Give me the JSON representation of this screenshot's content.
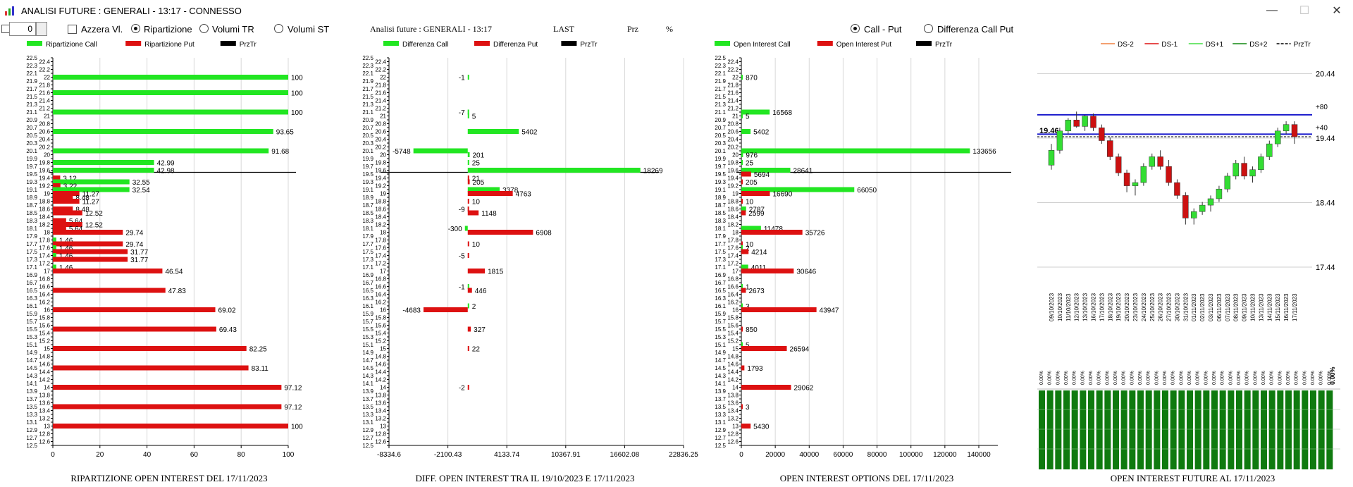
{
  "window": {
    "title": "ANALISI FUTURE : GENERALI - 13:17 - CONNESSO",
    "minimize": "—",
    "maximize": "☐",
    "close": "✕"
  },
  "toolbar": {
    "spin_value": "0",
    "azzera_label": "Azzera Vl.",
    "radio_ripartizione": "Ripartizione",
    "radio_volumi_tr": "Volumi TR",
    "radio_volumi_st": "Volumi ST",
    "analisi_title": "Analisi future : GENERALI - 13:17",
    "last_label": "LAST",
    "prz_label": "Prz",
    "pct_label": "%",
    "radio_call_put": "Call - Put",
    "radio_diff_call_put": "Differenza Call Put",
    "selected_mode": "Ripartizione",
    "selected_view": "Call - Put"
  },
  "colors": {
    "call": "#22e622",
    "put": "#dd1111",
    "prztr": "#000000",
    "future_bar": "#0f7a0f",
    "level_line": "#1a1acc"
  },
  "chart_data": [
    {
      "type": "bar",
      "caption": "RIPARTIZIONE OPEN INTEREST DEL 17/11/2023",
      "legend": [
        "Ripartizione Call",
        "Ripartizione Put",
        "PrzTr"
      ],
      "xticks": [
        "0",
        "20",
        "40",
        "60",
        "80",
        "100"
      ],
      "xlim": [
        0,
        100
      ],
      "prztr_strike": 19.6,
      "bars": [
        {
          "strike": 22,
          "series": "call",
          "value": 100,
          "label": "100"
        },
        {
          "strike": 21.6,
          "series": "call",
          "value": 100,
          "label": "100"
        },
        {
          "strike": 21.1,
          "series": "call",
          "value": 100,
          "label": "100"
        },
        {
          "strike": 20.6,
          "series": "call",
          "value": 93.65,
          "label": "93.65"
        },
        {
          "strike": 20.1,
          "series": "call",
          "value": 91.68,
          "label": "91.68"
        },
        {
          "strike": 19.8,
          "series": "call",
          "value": 42.99,
          "label": "42.99"
        },
        {
          "strike": 19.6,
          "series": "call",
          "value": 42.98,
          "label": "42.98"
        },
        {
          "strike": 19.4,
          "series": "put",
          "value": 3.12,
          "label": "3.12"
        },
        {
          "strike": 19.3,
          "series": "call",
          "value": 32.55,
          "label": "32.55"
        },
        {
          "strike": 19.2,
          "series": "put",
          "value": 3.22,
          "label": "3.22"
        },
        {
          "strike": 19.1,
          "series": "call",
          "value": 32.54,
          "label": "32.54"
        },
        {
          "strike": 19.0,
          "series": "put",
          "value": 11.27,
          "label": "11.27"
        },
        {
          "strike": 18.9,
          "series": "put",
          "value": 8.48,
          "label": "8.48"
        },
        {
          "strike": 18.8,
          "series": "put",
          "value": 11.27,
          "label": "11.27"
        },
        {
          "strike": 18.6,
          "series": "put",
          "value": 8.48,
          "label": "8.48"
        },
        {
          "strike": 18.5,
          "series": "put",
          "value": 12.52,
          "label": "12.52"
        },
        {
          "strike": 18.3,
          "series": "put",
          "value": 5.64,
          "label": "5.64"
        },
        {
          "strike": 18.2,
          "series": "put",
          "value": 12.52,
          "label": "12.52"
        },
        {
          "strike": 18.1,
          "series": "put",
          "value": 5.64,
          "label": "5.64"
        },
        {
          "strike": 18.0,
          "series": "put",
          "value": 29.74,
          "label": "29.74"
        },
        {
          "strike": 17.8,
          "series": "call",
          "value": 1.46,
          "label": "1.46"
        },
        {
          "strike": 17.7,
          "series": "put",
          "value": 29.74,
          "label": "29.74"
        },
        {
          "strike": 17.6,
          "series": "call",
          "value": 1.46,
          "label": "1.46"
        },
        {
          "strike": 17.5,
          "series": "put",
          "value": 31.77,
          "label": "31.77"
        },
        {
          "strike": 17.4,
          "series": "call",
          "value": 1.46,
          "label": "1.46"
        },
        {
          "strike": 17.3,
          "series": "put",
          "value": 31.77,
          "label": "31.77"
        },
        {
          "strike": 17.1,
          "series": "call",
          "value": 1.46,
          "label": "1.46"
        },
        {
          "strike": 17.0,
          "series": "put",
          "value": 46.54,
          "label": "46.54"
        },
        {
          "strike": 16.5,
          "series": "put",
          "value": 47.83,
          "label": "47.83"
        },
        {
          "strike": 16.0,
          "series": "put",
          "value": 69.02,
          "label": "69.02"
        },
        {
          "strike": 15.5,
          "series": "put",
          "value": 69.43,
          "label": "69.43"
        },
        {
          "strike": 15.0,
          "series": "put",
          "value": 82.25,
          "label": "82.25"
        },
        {
          "strike": 14.5,
          "series": "put",
          "value": 83.11,
          "label": "83.11"
        },
        {
          "strike": 14.0,
          "series": "put",
          "value": 97.12,
          "label": "97.12"
        },
        {
          "strike": 13.5,
          "series": "put",
          "value": 97.12,
          "label": "97.12"
        },
        {
          "strike": 13.0,
          "series": "put",
          "value": 100,
          "label": "100"
        }
      ]
    },
    {
      "type": "bar",
      "caption": "DIFF. OPEN INTEREST TRA IL 19/10/2023 E 17/11/2023",
      "legend": [
        "Differenza Call",
        "Differenza Put",
        "PrzTr"
      ],
      "xticks": [
        "-8334.6",
        "-2100.43",
        "4133.74",
        "10367.91",
        "16602.08",
        "22836.25"
      ],
      "xlim": [
        -8334.6,
        22836.25
      ],
      "prztr_strike": 19.6,
      "bars": [
        {
          "strike": 22,
          "series": "call",
          "value": -1,
          "label": "-1"
        },
        {
          "strike": 21.1,
          "series": "call",
          "value": -7,
          "label": "-7"
        },
        {
          "strike": 21.0,
          "series": "call",
          "value": 5,
          "label": "5"
        },
        {
          "strike": 20.6,
          "series": "call",
          "value": 5402,
          "label": "5402"
        },
        {
          "strike": 20.1,
          "series": "call",
          "value": -5748,
          "label": "-5748"
        },
        {
          "strike": 20.0,
          "series": "call",
          "value": 201,
          "label": "201"
        },
        {
          "strike": 19.8,
          "series": "call",
          "value": 25,
          "label": "25"
        },
        {
          "strike": 19.6,
          "series": "call",
          "value": 18269,
          "label": "18269"
        },
        {
          "strike": 19.4,
          "series": "put",
          "value": 21,
          "label": "21"
        },
        {
          "strike": 19.3,
          "series": "put",
          "value": 205,
          "label": "205"
        },
        {
          "strike": 19.1,
          "series": "call",
          "value": 3378,
          "label": "3378"
        },
        {
          "strike": 19.0,
          "series": "put",
          "value": 4763,
          "label": "4763"
        },
        {
          "strike": 18.8,
          "series": "put",
          "value": 10,
          "label": "10"
        },
        {
          "strike": 18.6,
          "series": "put",
          "value": -9,
          "label": "-9"
        },
        {
          "strike": 18.5,
          "series": "put",
          "value": 1148,
          "label": "1148"
        },
        {
          "strike": 18.1,
          "series": "call",
          "value": -300,
          "label": "-300"
        },
        {
          "strike": 18.0,
          "series": "put",
          "value": 6908,
          "label": "6908"
        },
        {
          "strike": 17.7,
          "series": "put",
          "value": 10,
          "label": "10"
        },
        {
          "strike": 17.4,
          "series": "put",
          "value": -5,
          "label": "-5"
        },
        {
          "strike": 17.0,
          "series": "put",
          "value": 1815,
          "label": "1815"
        },
        {
          "strike": 16.6,
          "series": "call",
          "value": -1,
          "label": "-1"
        },
        {
          "strike": 16.5,
          "series": "put",
          "value": 446,
          "label": "446"
        },
        {
          "strike": 16.1,
          "series": "call",
          "value": 2,
          "label": "2"
        },
        {
          "strike": 16.0,
          "series": "put",
          "value": -4683,
          "label": "-4683"
        },
        {
          "strike": 15.5,
          "series": "put",
          "value": 327,
          "label": "327"
        },
        {
          "strike": 15.0,
          "series": "put",
          "value": 22,
          "label": "22"
        },
        {
          "strike": 14.0,
          "series": "put",
          "value": -2,
          "label": "-2"
        }
      ]
    },
    {
      "type": "bar",
      "caption": "OPEN INTEREST OPTIONS DEL 17/11/2023",
      "legend": [
        "Open Interest Call",
        "Open Interest Put",
        "PrzTr"
      ],
      "xticks": [
        "0",
        "20000",
        "40000",
        "60000",
        "80000",
        "100000",
        "120000",
        "140000"
      ],
      "xlim": [
        0,
        150000
      ],
      "prztr_strike": 19.6,
      "bars": [
        {
          "strike": 22,
          "series": "call",
          "value": 870,
          "label": "870"
        },
        {
          "strike": 21.1,
          "series": "call",
          "value": 16568,
          "label": "16568"
        },
        {
          "strike": 21.0,
          "series": "call",
          "value": 5,
          "label": "5"
        },
        {
          "strike": 20.6,
          "series": "call",
          "value": 5402,
          "label": "5402"
        },
        {
          "strike": 20.1,
          "series": "call",
          "value": 133656,
          "label": "133656"
        },
        {
          "strike": 20.0,
          "series": "call",
          "value": 976,
          "label": "976"
        },
        {
          "strike": 19.8,
          "series": "call",
          "value": 25,
          "label": "25"
        },
        {
          "strike": 19.6,
          "series": "call",
          "value": 28641,
          "label": "28641"
        },
        {
          "strike": 19.5,
          "series": "put",
          "value": 5694,
          "label": "5694"
        },
        {
          "strike": 19.3,
          "series": "put",
          "value": 205,
          "label": "205"
        },
        {
          "strike": 19.1,
          "series": "call",
          "value": 66050,
          "label": "66050"
        },
        {
          "strike": 19.0,
          "series": "put",
          "value": 16690,
          "label": "16690"
        },
        {
          "strike": 18.8,
          "series": "put",
          "value": 10,
          "label": "10"
        },
        {
          "strike": 18.6,
          "series": "call",
          "value": 2787,
          "label": "2787"
        },
        {
          "strike": 18.5,
          "series": "put",
          "value": 2599,
          "label": "2599"
        },
        {
          "strike": 18.1,
          "series": "call",
          "value": 11478,
          "label": "11478"
        },
        {
          "strike": 18.0,
          "series": "put",
          "value": 35726,
          "label": "35726"
        },
        {
          "strike": 17.7,
          "series": "put",
          "value": 10,
          "label": "10"
        },
        {
          "strike": 17.6,
          "series": "call",
          "value": 2,
          "label": "2"
        },
        {
          "strike": 17.5,
          "series": "put",
          "value": 4214,
          "label": "4214"
        },
        {
          "strike": 17.1,
          "series": "call",
          "value": 4011,
          "label": "4011"
        },
        {
          "strike": 17.0,
          "series": "put",
          "value": 30646,
          "label": "30646"
        },
        {
          "strike": 16.6,
          "series": "call",
          "value": 1,
          "label": "1"
        },
        {
          "strike": 16.5,
          "series": "put",
          "value": 2673,
          "label": "2673"
        },
        {
          "strike": 16.1,
          "series": "call",
          "value": 3,
          "label": "3"
        },
        {
          "strike": 16.0,
          "series": "put",
          "value": 43947,
          "label": "43947"
        },
        {
          "strike": 15.5,
          "series": "put",
          "value": 850,
          "label": "850"
        },
        {
          "strike": 15.1,
          "series": "call",
          "value": 5,
          "label": "5"
        },
        {
          "strike": 15.0,
          "series": "put",
          "value": 26594,
          "label": "26594"
        },
        {
          "strike": 14.5,
          "series": "put",
          "value": 1793,
          "label": "1793"
        },
        {
          "strike": 14.0,
          "series": "put",
          "value": 29062,
          "label": "29062"
        },
        {
          "strike": 13.5,
          "series": "put",
          "value": 3,
          "label": "3"
        },
        {
          "strike": 13.0,
          "series": "put",
          "value": 5430,
          "label": "5430"
        }
      ]
    },
    {
      "type": "candlestick",
      "caption": "OPEN INTEREST FUTURE AL 17/11/2023",
      "legend": [
        "DS-2",
        "DS-1",
        "DS+1",
        "DS+2",
        "PrzTr"
      ],
      "legend_colors": [
        "#f08040",
        "#dd1111",
        "#44dd44",
        "#118811",
        "#000000"
      ],
      "yticks": [
        "20.44",
        "19.44",
        "18.44",
        "17.44"
      ],
      "ylim": [
        17.44,
        20.64
      ],
      "current_price_label": "19.46",
      "current_price": 19.46,
      "line_labels": [
        "+80",
        "+40"
      ],
      "level_plus80": 19.8,
      "level_plus40": 19.5,
      "dates": [
        "09/10/2023",
        "10/10/2023",
        "11/10/2023",
        "12/10/2023",
        "13/10/2023",
        "16/10/2023",
        "17/10/2023",
        "18/10/2023",
        "19/10/2023",
        "20/10/2023",
        "23/10/2023",
        "24/10/2023",
        "25/10/2023",
        "26/10/2023",
        "27/10/2023",
        "30/10/2023",
        "31/10/2023",
        "01/11/2023",
        "02/11/2023",
        "03/11/2023",
        "06/11/2023",
        "07/11/2023",
        "08/11/2023",
        "09/11/2023",
        "10/11/2023",
        "13/11/2023",
        "14/11/2023",
        "15/11/2023",
        "16/11/2023",
        "17/11/2023"
      ],
      "ohlc": [
        [
          19.02,
          19.35,
          18.95,
          19.25
        ],
        [
          19.25,
          19.6,
          19.2,
          19.55
        ],
        [
          19.55,
          19.75,
          19.5,
          19.72
        ],
        [
          19.72,
          19.85,
          19.6,
          19.62
        ],
        [
          19.62,
          19.8,
          19.55,
          19.78
        ],
        [
          19.78,
          19.82,
          19.55,
          19.6
        ],
        [
          19.6,
          19.65,
          19.35,
          19.4
        ],
        [
          19.4,
          19.45,
          19.1,
          19.15
        ],
        [
          19.15,
          19.2,
          18.85,
          18.9
        ],
        [
          18.9,
          18.95,
          18.6,
          18.7
        ],
        [
          18.7,
          18.8,
          18.55,
          18.75
        ],
        [
          18.75,
          19.05,
          18.7,
          19.0
        ],
        [
          19.0,
          19.2,
          18.95,
          19.15
        ],
        [
          19.15,
          19.25,
          18.95,
          19.0
        ],
        [
          19.0,
          19.1,
          18.7,
          18.75
        ],
        [
          18.75,
          18.8,
          18.5,
          18.55
        ],
        [
          18.55,
          18.6,
          18.1,
          18.2
        ],
        [
          18.2,
          18.35,
          18.1,
          18.3
        ],
        [
          18.3,
          18.45,
          18.25,
          18.4
        ],
        [
          18.4,
          18.55,
          18.3,
          18.5
        ],
        [
          18.5,
          18.7,
          18.45,
          18.65
        ],
        [
          18.65,
          18.9,
          18.6,
          18.85
        ],
        [
          18.85,
          19.1,
          18.8,
          19.05
        ],
        [
          19.05,
          19.15,
          18.8,
          18.85
        ],
        [
          18.85,
          19.0,
          18.75,
          18.95
        ],
        [
          18.95,
          19.2,
          18.9,
          19.15
        ],
        [
          19.15,
          19.4,
          19.1,
          19.35
        ],
        [
          19.35,
          19.6,
          19.3,
          19.55
        ],
        [
          19.55,
          19.7,
          19.5,
          19.65
        ],
        [
          19.65,
          19.7,
          19.35,
          19.46
        ]
      ],
      "oi_label": "0.00%",
      "oi_values_label": "0.00%"
    }
  ]
}
